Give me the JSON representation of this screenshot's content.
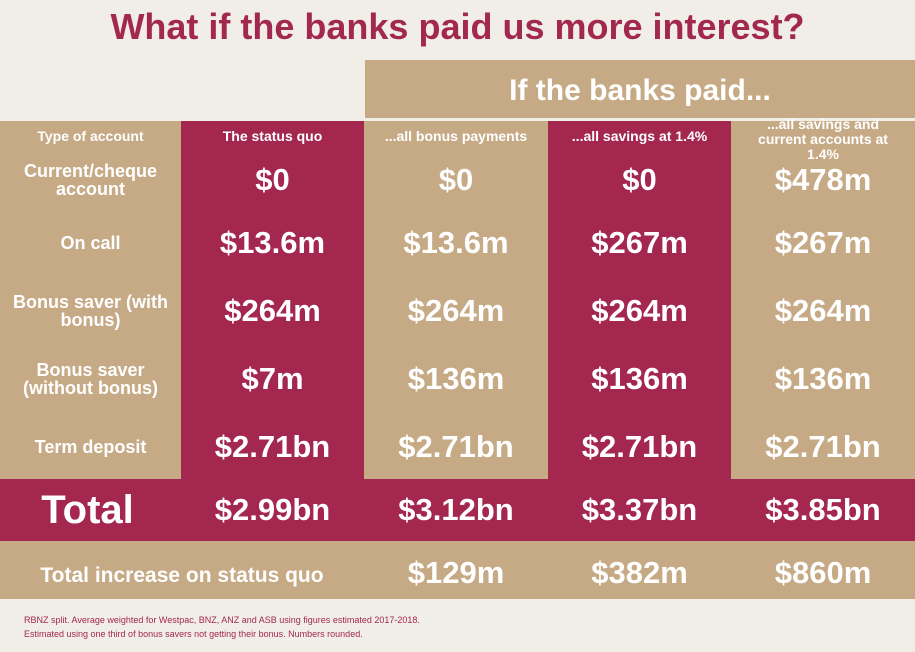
{
  "title": "What if the banks paid us more interest?",
  "banner": "If the banks paid...",
  "columns": [
    "Type of account",
    "The status quo",
    "...all bonus payments",
    "...all savings at 1.4%",
    "...all savings and current accounts at 1.4%"
  ],
  "rows": [
    {
      "label": "Current/cheque account",
      "values": [
        "$0",
        "$0",
        "$0",
        "$478m"
      ]
    },
    {
      "label": "On call",
      "values": [
        "$13.6m",
        "$13.6m",
        "$267m",
        "$267m"
      ]
    },
    {
      "label": "Bonus saver (with bonus)",
      "values": [
        "$264m",
        "$264m",
        "$264m",
        "$264m"
      ]
    },
    {
      "label": "Bonus saver (without bonus)",
      "values": [
        "$7m",
        "$136m",
        "$136m",
        "$136m"
      ]
    },
    {
      "label": "Term deposit",
      "values": [
        "$2.71bn",
        "$2.71bn",
        "$2.71bn",
        "$2.71bn"
      ]
    }
  ],
  "total": {
    "label": "Total",
    "values": [
      "$2.99bn",
      "$3.12bn",
      "$3.37bn",
      "$3.85bn"
    ]
  },
  "increase": {
    "label": "Total increase on status quo",
    "values": [
      "",
      "$129m",
      "$382m",
      "$860m"
    ]
  },
  "footnotes": [
    "RBNZ split. Average weighted for Westpac, BNZ, ANZ and ASB using figures estimated 2017-2018.",
    "Estimated using one third of bonus savers not getting their bonus. Numbers rounded."
  ],
  "colors": {
    "accent": "#a3274f",
    "tan": "#c6aa85",
    "background": "#f1eee8"
  }
}
